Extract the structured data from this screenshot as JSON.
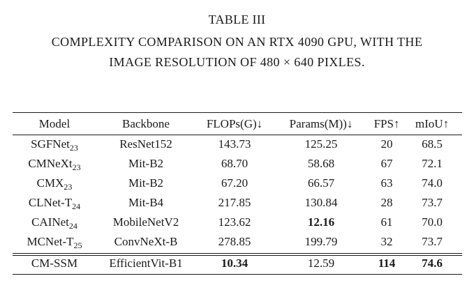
{
  "caption": {
    "title": "TABLE III",
    "line1": "COMPLEXITY COMPARISON ON AN RTX 4090 GPU, WITH THE",
    "line2": "IMAGE RESOLUTION OF 480 × 640 PIXLES."
  },
  "table": {
    "headers": {
      "model": "Model",
      "backbone": "Backbone",
      "flops": "FLOPs(G)↓",
      "params": "Params(M))↓",
      "fps": "FPS↑",
      "miou": "mIoU↑"
    },
    "rows": [
      {
        "model": "SGFNet",
        "sub": "23",
        "backbone": "ResNet152",
        "flops": "143.73",
        "params": "125.25",
        "fps": "20",
        "miou": "68.5"
      },
      {
        "model": "CMNeXt",
        "sub": "23",
        "backbone": "Mit-B2",
        "flops": "68.70",
        "params": "58.68",
        "fps": "67",
        "miou": "72.1"
      },
      {
        "model": "CMX",
        "sub": "23",
        "backbone": "Mit-B2",
        "flops": "67.20",
        "params": "66.57",
        "fps": "63",
        "miou": "74.0"
      },
      {
        "model": "CLNet-T",
        "sub": "24",
        "backbone": "Mit-B4",
        "flops": "217.85",
        "params": "130.84",
        "fps": "28",
        "miou": "73.7"
      },
      {
        "model": "CAINet",
        "sub": "24",
        "backbone": "MobileNetV2",
        "flops": "123.62",
        "params": "12.16",
        "fps": "61",
        "miou": "70.0"
      },
      {
        "model": "MCNet-T",
        "sub": "25",
        "backbone": "ConvNeXt-B",
        "flops": "278.85",
        "params": "199.79",
        "fps": "32",
        "miou": "73.7"
      }
    ],
    "final_row": {
      "model": "CM-SSM",
      "backbone": "EfficientVit-B1",
      "flops": "10.34",
      "params": "12.59",
      "fps": "114",
      "miou": "74.6"
    }
  }
}
